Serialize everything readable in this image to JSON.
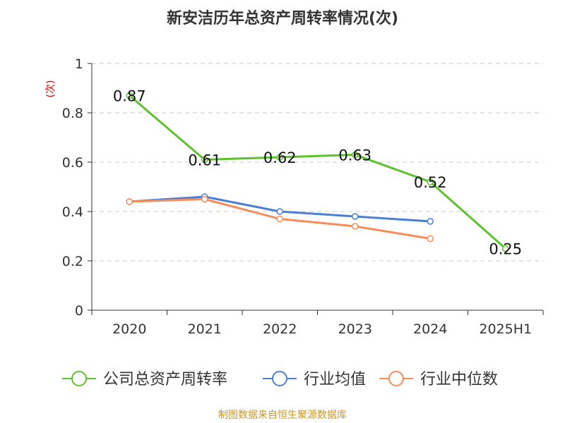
{
  "chart_data": {
    "type": "line",
    "title": "新安洁历年总资产周转率情况(次)",
    "ylabel": "(次)",
    "categories": [
      "2020",
      "2021",
      "2022",
      "2023",
      "2024",
      "2025H1"
    ],
    "ylim": [
      0,
      1
    ],
    "yticks": [
      0,
      0.2,
      0.4,
      0.6,
      0.8,
      1
    ],
    "ytick_labels": [
      "0",
      "0.2",
      "0.4",
      "0.6",
      "0.8",
      "1"
    ],
    "grid": true,
    "legend_position": "bottom",
    "series": [
      {
        "name": "公司总资产周转率",
        "color": "#5cc22a",
        "values": [
          0.87,
          0.61,
          0.62,
          0.63,
          0.52,
          0.25
        ],
        "labels": [
          "0.87",
          "0.61",
          "0.62",
          "0.63",
          "0.52",
          "0.25"
        ]
      },
      {
        "name": "行业均值",
        "color": "#4a7fd6",
        "values": [
          0.44,
          0.46,
          0.4,
          0.38,
          0.36,
          null
        ]
      },
      {
        "name": "行业中位数",
        "color": "#f58c5a",
        "values": [
          0.44,
          0.45,
          0.37,
          0.34,
          0.29,
          null
        ]
      }
    ]
  },
  "footer": {
    "source": "制图数据来自恒生聚源数据库"
  }
}
